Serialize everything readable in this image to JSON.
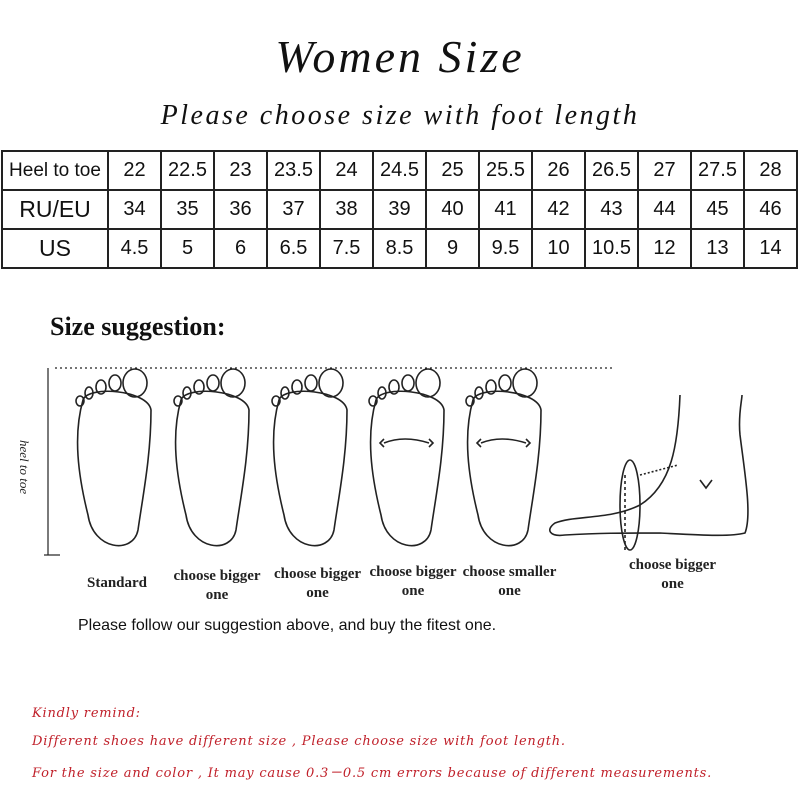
{
  "title": "Women Size",
  "subtitle": "Please choose size with foot length",
  "table": {
    "rows": [
      {
        "label": "Heel to toe",
        "values": [
          "22",
          "22.5",
          "23",
          "23.5",
          "24",
          "24.5",
          "25",
          "25.5",
          "26",
          "26.5",
          "27",
          "27.5",
          "28"
        ]
      },
      {
        "label": "RU/EU",
        "values": [
          "34",
          "35",
          "36",
          "37",
          "38",
          "39",
          "40",
          "41",
          "42",
          "43",
          "44",
          "45",
          "46"
        ]
      },
      {
        "label": "US",
        "values": [
          "4.5",
          "5",
          "6",
          "6.5",
          "7.5",
          "8.5",
          "9",
          "9.5",
          "10",
          "10.5",
          "12",
          "13",
          "14"
        ]
      }
    ]
  },
  "suggestion": {
    "heading": "Size suggestion:",
    "axis_label": "heel to toe",
    "labels": [
      "Standard",
      "choose bigger one",
      "choose bigger one",
      "choose bigger one",
      "choose smaller one",
      "choose bigger one"
    ],
    "follow": "Please follow our suggestion above, and buy the fitest one."
  },
  "remind": {
    "heading": "Kindly remind:",
    "line1": "Different shoes have different size , Please choose size with foot length.",
    "line2": "For the size and color , It may cause 0.3－0.5 cm errors because of different measurements.",
    "color": "#c0202a"
  }
}
